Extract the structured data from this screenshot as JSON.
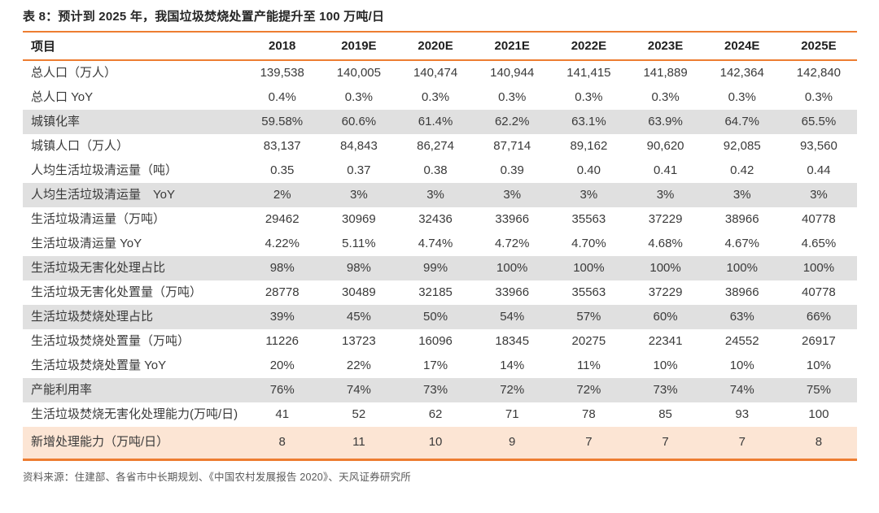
{
  "title": "表 8：预计到 2025 年，我国垃圾焚烧处置产能提升至 100 万吨/日",
  "source": "资料来源：住建部、各省市中长期规划、《中国农村发展报告 2020》、天风证券研究所",
  "accent_color": "#ED7D31",
  "row_shade_gray": "#E0E0E0",
  "row_shade_orange": "#FCE5D4",
  "table": {
    "columns": [
      "项目",
      "2018",
      "2019E",
      "2020E",
      "2021E",
      "2022E",
      "2023E",
      "2024E",
      "2025E"
    ],
    "rows": [
      {
        "label": "总人口（万人）",
        "shade": "none",
        "values": [
          "139,538",
          "140,005",
          "140,474",
          "140,944",
          "141,415",
          "141,889",
          "142,364",
          "142,840"
        ]
      },
      {
        "label": "总人口 YoY",
        "shade": "none",
        "values": [
          "0.4%",
          "0.3%",
          "0.3%",
          "0.3%",
          "0.3%",
          "0.3%",
          "0.3%",
          "0.3%"
        ]
      },
      {
        "label": "城镇化率",
        "shade": "gray",
        "values": [
          "59.58%",
          "60.6%",
          "61.4%",
          "62.2%",
          "63.1%",
          "63.9%",
          "64.7%",
          "65.5%"
        ]
      },
      {
        "label": "城镇人口（万人）",
        "shade": "none",
        "values": [
          "83,137",
          "84,843",
          "86,274",
          "87,714",
          "89,162",
          "90,620",
          "92,085",
          "93,560"
        ]
      },
      {
        "label": "人均生活垃圾清运量（吨）",
        "shade": "none",
        "values": [
          "0.35",
          "0.37",
          "0.38",
          "0.39",
          "0.40",
          "0.41",
          "0.42",
          "0.44"
        ]
      },
      {
        "label": "人均生活垃圾清运量　YoY",
        "shade": "gray",
        "values": [
          "2%",
          "3%",
          "3%",
          "3%",
          "3%",
          "3%",
          "3%",
          "3%"
        ]
      },
      {
        "label": "生活垃圾清运量（万吨）",
        "shade": "none",
        "values": [
          "29462",
          "30969",
          "32436",
          "33966",
          "35563",
          "37229",
          "38966",
          "40778"
        ]
      },
      {
        "label": "生活垃圾清运量 YoY",
        "shade": "none",
        "values": [
          "4.22%",
          "5.11%",
          "4.74%",
          "4.72%",
          "4.70%",
          "4.68%",
          "4.67%",
          "4.65%"
        ]
      },
      {
        "label": "生活垃圾无害化处理占比",
        "shade": "gray",
        "values": [
          "98%",
          "98%",
          "99%",
          "100%",
          "100%",
          "100%",
          "100%",
          "100%"
        ]
      },
      {
        "label": "生活垃圾无害化处置量（万吨）",
        "shade": "none",
        "values": [
          "28778",
          "30489",
          "32185",
          "33966",
          "35563",
          "37229",
          "38966",
          "40778"
        ]
      },
      {
        "label": "生活垃圾焚烧处理占比",
        "shade": "gray",
        "values": [
          "39%",
          "45%",
          "50%",
          "54%",
          "57%",
          "60%",
          "63%",
          "66%"
        ]
      },
      {
        "label": "生活垃圾焚烧处置量（万吨）",
        "shade": "none",
        "values": [
          "11226",
          "13723",
          "16096",
          "18345",
          "20275",
          "22341",
          "24552",
          "26917"
        ]
      },
      {
        "label": "生活垃圾焚烧处置量 YoY",
        "shade": "none",
        "values": [
          "20%",
          "22%",
          "17%",
          "14%",
          "11%",
          "10%",
          "10%",
          "10%"
        ]
      },
      {
        "label": "产能利用率",
        "shade": "gray",
        "values": [
          "76%",
          "74%",
          "73%",
          "72%",
          "72%",
          "73%",
          "74%",
          "75%"
        ]
      },
      {
        "label": "生活垃圾焚烧无害化处理能力(万吨/日)",
        "shade": "none",
        "values": [
          "41",
          "52",
          "62",
          "71",
          "78",
          "85",
          "93",
          "100"
        ]
      },
      {
        "label": "新增处理能力（万吨/日）",
        "shade": "orange",
        "values": [
          "8",
          "11",
          "10",
          "9",
          "7",
          "7",
          "7",
          "8"
        ]
      }
    ]
  }
}
